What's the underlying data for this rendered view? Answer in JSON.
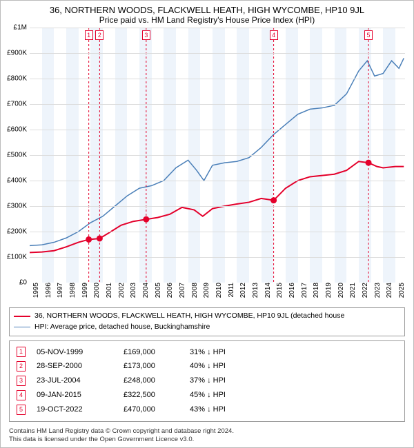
{
  "title": "36, NORTHERN WOODS, FLACKWELL HEATH, HIGH WYCOMBE, HP10 9JL",
  "subtitle": "Price paid vs. HM Land Registry's House Price Index (HPI)",
  "colors": {
    "series_price": "#e4002b",
    "series_hpi": "#4a7fb8",
    "grid": "#dcdcdc",
    "band": "#eef4fb",
    "axis_text": "#000000",
    "background": "#ffffff"
  },
  "chart": {
    "type": "line",
    "x_axis": {
      "min": 1995,
      "max": 2025.8,
      "ticks": [
        1995,
        1996,
        1997,
        1998,
        1999,
        2000,
        2001,
        2002,
        2003,
        2004,
        2005,
        2006,
        2007,
        2008,
        2009,
        2010,
        2011,
        2012,
        2013,
        2014,
        2015,
        2016,
        2017,
        2018,
        2019,
        2020,
        2021,
        2022,
        2023,
        2024,
        2025
      ],
      "label_rotation": -90,
      "label_fontsize": 10
    },
    "y_axis": {
      "min": 0,
      "max": 1000000,
      "ticks": [
        0,
        100000,
        200000,
        300000,
        400000,
        500000,
        600000,
        700000,
        800000,
        900000,
        1000000
      ],
      "tick_labels": [
        "£0",
        "£100K",
        "£200K",
        "£300K",
        "£400K",
        "£500K",
        "£600K",
        "£700K",
        "£800K",
        "£900K",
        "£1M"
      ],
      "label_fontsize": 10
    },
    "bands_alternate": true,
    "series": [
      {
        "name": "price_paid",
        "label": "36, NORTHERN WOODS, FLACKWELL HEATH, HIGH WYCOMBE, HP10 9JL (detached house",
        "color": "#e4002b",
        "line_width": 2,
        "points": [
          [
            1995.0,
            118000
          ],
          [
            1996.0,
            120000
          ],
          [
            1997.0,
            125000
          ],
          [
            1998.0,
            140000
          ],
          [
            1999.0,
            158000
          ],
          [
            1999.85,
            169000
          ],
          [
            2000.74,
            173000
          ],
          [
            2001.5,
            195000
          ],
          [
            2002.5,
            225000
          ],
          [
            2003.5,
            240000
          ],
          [
            2004.56,
            248000
          ],
          [
            2005.5,
            255000
          ],
          [
            2006.5,
            268000
          ],
          [
            2007.5,
            295000
          ],
          [
            2008.5,
            285000
          ],
          [
            2009.2,
            260000
          ],
          [
            2010.0,
            290000
          ],
          [
            2011.0,
            300000
          ],
          [
            2012.0,
            308000
          ],
          [
            2013.0,
            315000
          ],
          [
            2014.0,
            330000
          ],
          [
            2015.02,
            322500
          ],
          [
            2016.0,
            370000
          ],
          [
            2017.0,
            400000
          ],
          [
            2018.0,
            415000
          ],
          [
            2019.0,
            420000
          ],
          [
            2020.0,
            425000
          ],
          [
            2021.0,
            440000
          ],
          [
            2022.0,
            475000
          ],
          [
            2022.8,
            470000
          ],
          [
            2023.5,
            455000
          ],
          [
            2024.0,
            450000
          ],
          [
            2025.0,
            455000
          ],
          [
            2025.7,
            455000
          ]
        ],
        "markers": [
          {
            "n": 1,
            "x": 1999.85,
            "y": 169000
          },
          {
            "n": 2,
            "x": 2000.74,
            "y": 173000
          },
          {
            "n": 3,
            "x": 2004.56,
            "y": 248000
          },
          {
            "n": 4,
            "x": 2015.02,
            "y": 322500
          },
          {
            "n": 5,
            "x": 2022.8,
            "y": 470000
          }
        ]
      },
      {
        "name": "hpi",
        "label": "HPI: Average price, detached house, Buckinghamshire",
        "color": "#4a7fb8",
        "line_width": 1.5,
        "points": [
          [
            1995.0,
            145000
          ],
          [
            1996.0,
            148000
          ],
          [
            1997.0,
            158000
          ],
          [
            1998.0,
            175000
          ],
          [
            1999.0,
            200000
          ],
          [
            2000.0,
            235000
          ],
          [
            2001.0,
            260000
          ],
          [
            2002.0,
            300000
          ],
          [
            2003.0,
            340000
          ],
          [
            2004.0,
            370000
          ],
          [
            2005.0,
            380000
          ],
          [
            2006.0,
            400000
          ],
          [
            2007.0,
            450000
          ],
          [
            2008.0,
            480000
          ],
          [
            2008.7,
            440000
          ],
          [
            2009.3,
            400000
          ],
          [
            2010.0,
            460000
          ],
          [
            2011.0,
            470000
          ],
          [
            2012.0,
            475000
          ],
          [
            2013.0,
            490000
          ],
          [
            2014.0,
            530000
          ],
          [
            2015.0,
            580000
          ],
          [
            2016.0,
            620000
          ],
          [
            2017.0,
            660000
          ],
          [
            2018.0,
            680000
          ],
          [
            2019.0,
            685000
          ],
          [
            2020.0,
            695000
          ],
          [
            2021.0,
            740000
          ],
          [
            2022.0,
            830000
          ],
          [
            2022.7,
            870000
          ],
          [
            2023.3,
            810000
          ],
          [
            2024.0,
            820000
          ],
          [
            2024.7,
            870000
          ],
          [
            2025.3,
            840000
          ],
          [
            2025.7,
            880000
          ]
        ]
      }
    ]
  },
  "legend": {
    "items": [
      {
        "color": "#e4002b",
        "width": 2,
        "label": "36, NORTHERN WOODS, FLACKWELL HEATH, HIGH WYCOMBE, HP10 9JL (detached house"
      },
      {
        "color": "#4a7fb8",
        "width": 1.5,
        "label": "HPI: Average price, detached house, Buckinghamshire"
      }
    ]
  },
  "transactions": {
    "rows": [
      {
        "n": 1,
        "date": "05-NOV-1999",
        "price": "£169,000",
        "diff": "31% ↓ HPI"
      },
      {
        "n": 2,
        "date": "28-SEP-2000",
        "price": "£173,000",
        "diff": "40% ↓ HPI"
      },
      {
        "n": 3,
        "date": "23-JUL-2004",
        "price": "£248,000",
        "diff": "37% ↓ HPI"
      },
      {
        "n": 4,
        "date": "09-JAN-2015",
        "price": "£322,500",
        "diff": "45% ↓ HPI"
      },
      {
        "n": 5,
        "date": "19-OCT-2022",
        "price": "£470,000",
        "diff": "43% ↓ HPI"
      }
    ]
  },
  "copyright": {
    "line1": "Contains HM Land Registry data © Crown copyright and database right 2024.",
    "line2": "This data is licensed under the Open Government Licence v3.0."
  }
}
